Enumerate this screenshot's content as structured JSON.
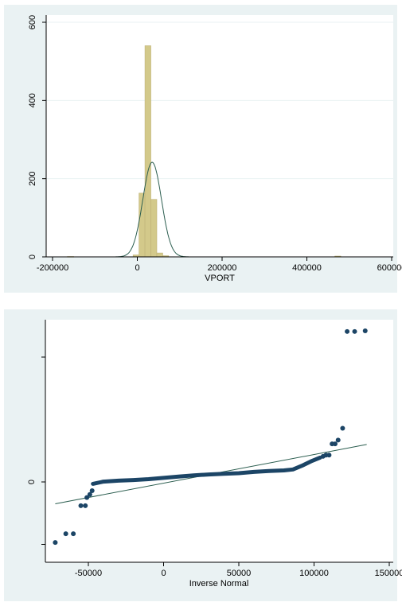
{
  "chart_data": [
    {
      "type": "bar",
      "subtype": "histogram-with-normal-density",
      "xlabel": "VPORT",
      "ylabel": "",
      "xlim": [
        -200000,
        600000
      ],
      "ylim": [
        0,
        600
      ],
      "x_ticks": [
        {
          "value": -200000,
          "label": "-200000"
        },
        {
          "value": 0,
          "label": "0"
        },
        {
          "value": 200000,
          "label": "200000"
        },
        {
          "value": 400000,
          "label": "400000"
        },
        {
          "value": 600000,
          "label": "600000"
        }
      ],
      "y_ticks": [
        {
          "value": 0,
          "label": "0"
        },
        {
          "value": 200,
          "label": "200"
        },
        {
          "value": 400,
          "label": "400"
        },
        {
          "value": 600,
          "label": "600"
        }
      ],
      "grid": true,
      "bins": [
        {
          "start": -165000,
          "end": -150000,
          "count": 1
        },
        {
          "start": -10000,
          "end": 4000,
          "count": 5
        },
        {
          "start": 4000,
          "end": 18000,
          "count": 163
        },
        {
          "start": 18000,
          "end": 32000,
          "count": 540
        },
        {
          "start": 32000,
          "end": 46000,
          "count": 147
        },
        {
          "start": 46000,
          "end": 60000,
          "count": 10
        },
        {
          "start": 60000,
          "end": 74000,
          "count": 3
        },
        {
          "start": 466000,
          "end": 480000,
          "count": 2
        }
      ],
      "normal_density": {
        "mean": 35000,
        "sd": 22000,
        "peak": 242
      },
      "colors": {
        "bar": "#d3c98a",
        "bar_edge": "#bfb277",
        "curve": "#2c5e50",
        "plot_bg": "#eaf2f3",
        "grid": "#ffffff"
      }
    },
    {
      "type": "scatter",
      "subtype": "quantile-normal-plot",
      "xlabel": "Inverse Normal",
      "ylabel": "",
      "xlim": [
        -75000,
        150000
      ],
      "ylim": [
        -25000,
        80000
      ],
      "x_ticks": [
        {
          "value": -50000,
          "label": "-50000"
        },
        {
          "value": 0,
          "label": "0"
        },
        {
          "value": 50000,
          "label": "50000"
        },
        {
          "value": 100000,
          "label": "100000"
        },
        {
          "value": 150000,
          "label": "150000"
        }
      ],
      "y_ticks": [
        {
          "value": 0,
          "label": "0"
        }
      ],
      "y_unlabeled_ticks": [
        -10000,
        20000,
        50000,
        77000
      ],
      "reference_line": {
        "x": [
          -72000,
          135000
        ],
        "y": [
          -3500,
          6000
        ]
      },
      "curve_points": [
        [
          -47000,
          -300
        ],
        [
          -40000,
          50
        ],
        [
          -30000,
          200
        ],
        [
          -20000,
          300
        ],
        [
          -10000,
          450
        ],
        [
          0,
          650
        ],
        [
          10000,
          850
        ],
        [
          20000,
          1050
        ],
        [
          30000,
          1200
        ],
        [
          40000,
          1300
        ],
        [
          50000,
          1400
        ],
        [
          60000,
          1600
        ],
        [
          70000,
          1750
        ],
        [
          80000,
          1850
        ],
        [
          86000,
          2000
        ],
        [
          92000,
          2600
        ],
        [
          98000,
          3300
        ],
        [
          104000,
          3900
        ]
      ],
      "tail_points": [
        [
          -72000,
          -9700
        ],
        [
          -65000,
          -8300
        ],
        [
          -60000,
          -8300
        ],
        [
          -55000,
          -3800
        ],
        [
          -52000,
          -3800
        ],
        [
          -51000,
          -2500
        ],
        [
          -49000,
          -2000
        ],
        [
          -47500,
          -1400
        ],
        [
          106000,
          4100
        ],
        [
          108000,
          4300
        ],
        [
          110000,
          4300
        ],
        [
          112000,
          6100
        ],
        [
          114000,
          6100
        ],
        [
          116000,
          6700
        ],
        [
          119000,
          8600
        ],
        [
          122000,
          24100
        ],
        [
          127000,
          24100
        ],
        [
          134000,
          24200
        ]
      ],
      "colors": {
        "marker": "#1c4566",
        "line": "#2c5e50",
        "plot_bg": "#ffffff",
        "frame": "#eaf2f3"
      }
    }
  ]
}
